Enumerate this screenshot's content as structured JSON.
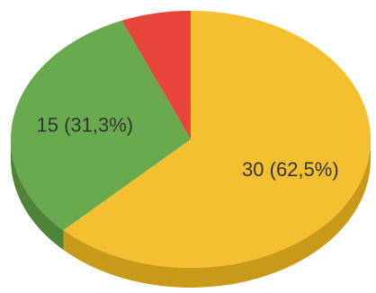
{
  "chart_data": {
    "type": "pie",
    "style": "3d",
    "start_angle_deg": 0,
    "direction": "clockwise",
    "slices": [
      {
        "value": 30,
        "label": "30 (62,5%)",
        "color": "#f4c030",
        "side_color": "#c99a18"
      },
      {
        "value": 15,
        "label": "15 (31,3%)",
        "color": "#6aaa4f",
        "side_color": "#4f8438"
      },
      {
        "value": 3,
        "label": "",
        "color": "#e8453a",
        "side_color": "#b8332b"
      }
    ],
    "legend": "none"
  }
}
